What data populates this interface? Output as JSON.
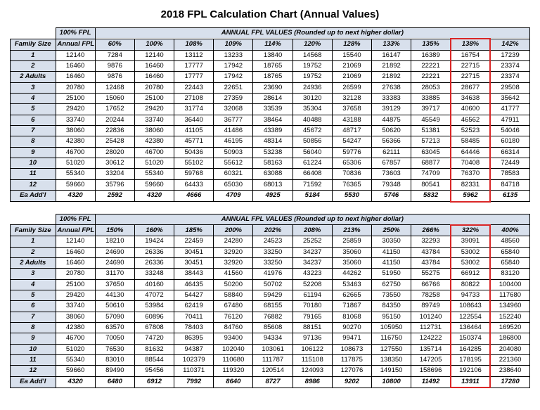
{
  "title": "2018 FPL Calculation Chart (Annual Values)",
  "labels": {
    "family_size": "Family Size",
    "fpl100": "100% FPL",
    "annual_fpl": "Annual FPL",
    "spanner": "ANNUAL FPL VALUES (Rounded up to next higher dollar)",
    "ea_addl": "Ea Add'l"
  },
  "colors": {
    "header_bg": "#d8e0ec",
    "highlight_border": "#d92626",
    "border": "#000000",
    "background": "#ffffff"
  },
  "typography": {
    "title_fontsize_pt": 11,
    "body_fontsize_pt": 7
  },
  "table1": {
    "highlight_cols": [
      9
    ],
    "pct_headers": [
      "60%",
      "100%",
      "108%",
      "109%",
      "114%",
      "120%",
      "128%",
      "133%",
      "135%",
      "138%",
      "142%"
    ],
    "rows": [
      {
        "fs": "1",
        "afpl": "12140",
        "v": [
          "7284",
          "12140",
          "13112",
          "13233",
          "13840",
          "14568",
          "15540",
          "16147",
          "16389",
          "16754",
          "17239"
        ]
      },
      {
        "fs": "2",
        "afpl": "16460",
        "v": [
          "9876",
          "16460",
          "17777",
          "17942",
          "18765",
          "19752",
          "21069",
          "21892",
          "22221",
          "22715",
          "23374"
        ]
      },
      {
        "fs": "2 Adults",
        "afpl": "16460",
        "v": [
          "9876",
          "16460",
          "17777",
          "17942",
          "18765",
          "19752",
          "21069",
          "21892",
          "22221",
          "22715",
          "23374"
        ]
      },
      {
        "fs": "3",
        "afpl": "20780",
        "v": [
          "12468",
          "20780",
          "22443",
          "22651",
          "23690",
          "24936",
          "26599",
          "27638",
          "28053",
          "28677",
          "29508"
        ]
      },
      {
        "fs": "4",
        "afpl": "25100",
        "v": [
          "15060",
          "25100",
          "27108",
          "27359",
          "28614",
          "30120",
          "32128",
          "33383",
          "33885",
          "34638",
          "35642"
        ]
      },
      {
        "fs": "5",
        "afpl": "29420",
        "v": [
          "17652",
          "29420",
          "31774",
          "32068",
          "33539",
          "35304",
          "37658",
          "39129",
          "39717",
          "40600",
          "41777"
        ]
      },
      {
        "fs": "6",
        "afpl": "33740",
        "v": [
          "20244",
          "33740",
          "36440",
          "36777",
          "38464",
          "40488",
          "43188",
          "44875",
          "45549",
          "46562",
          "47911"
        ]
      },
      {
        "fs": "7",
        "afpl": "38060",
        "v": [
          "22836",
          "38060",
          "41105",
          "41486",
          "43389",
          "45672",
          "48717",
          "50620",
          "51381",
          "52523",
          "54046"
        ]
      },
      {
        "fs": "8",
        "afpl": "42380",
        "v": [
          "25428",
          "42380",
          "45771",
          "46195",
          "48314",
          "50856",
          "54247",
          "56366",
          "57213",
          "58485",
          "60180"
        ]
      },
      {
        "fs": "9",
        "afpl": "46700",
        "v": [
          "28020",
          "46700",
          "50436",
          "50903",
          "53238",
          "56040",
          "59776",
          "62111",
          "63045",
          "64446",
          "66314"
        ]
      },
      {
        "fs": "10",
        "afpl": "51020",
        "v": [
          "30612",
          "51020",
          "55102",
          "55612",
          "58163",
          "61224",
          "65306",
          "67857",
          "68877",
          "70408",
          "72449"
        ]
      },
      {
        "fs": "11",
        "afpl": "55340",
        "v": [
          "33204",
          "55340",
          "59768",
          "60321",
          "63088",
          "66408",
          "70836",
          "73603",
          "74709",
          "76370",
          "78583"
        ]
      },
      {
        "fs": "12",
        "afpl": "59660",
        "v": [
          "35796",
          "59660",
          "64433",
          "65030",
          "68013",
          "71592",
          "76365",
          "79348",
          "80541",
          "82331",
          "84718"
        ]
      }
    ],
    "footer": {
      "fs": "Ea Add'l",
      "afpl": "4320",
      "v": [
        "2592",
        "4320",
        "4666",
        "4709",
        "4925",
        "5184",
        "5530",
        "5746",
        "5832",
        "5962",
        "6135"
      ]
    }
  },
  "table2": {
    "highlight_cols": [
      9
    ],
    "pct_headers": [
      "150%",
      "160%",
      "185%",
      "200%",
      "202%",
      "208%",
      "213%",
      "250%",
      "266%",
      "322%",
      "400%"
    ],
    "rows": [
      {
        "fs": "1",
        "afpl": "12140",
        "v": [
          "18210",
          "19424",
          "22459",
          "24280",
          "24523",
          "25252",
          "25859",
          "30350",
          "32293",
          "39091",
          "48560"
        ]
      },
      {
        "fs": "2",
        "afpl": "16460",
        "v": [
          "24690",
          "26336",
          "30451",
          "32920",
          "33250",
          "34237",
          "35060",
          "41150",
          "43784",
          "53002",
          "65840"
        ]
      },
      {
        "fs": "2 Adults",
        "afpl": "16460",
        "v": [
          "24690",
          "26336",
          "30451",
          "32920",
          "33250",
          "34237",
          "35060",
          "41150",
          "43784",
          "53002",
          "65840"
        ]
      },
      {
        "fs": "3",
        "afpl": "20780",
        "v": [
          "31170",
          "33248",
          "38443",
          "41560",
          "41976",
          "43223",
          "44262",
          "51950",
          "55275",
          "66912",
          "83120"
        ]
      },
      {
        "fs": "4",
        "afpl": "25100",
        "v": [
          "37650",
          "40160",
          "46435",
          "50200",
          "50702",
          "52208",
          "53463",
          "62750",
          "66766",
          "80822",
          "100400"
        ]
      },
      {
        "fs": "5",
        "afpl": "29420",
        "v": [
          "44130",
          "47072",
          "54427",
          "58840",
          "59429",
          "61194",
          "62665",
          "73550",
          "78258",
          "94733",
          "117680"
        ]
      },
      {
        "fs": "6",
        "afpl": "33740",
        "v": [
          "50610",
          "53984",
          "62419",
          "67480",
          "68155",
          "70180",
          "71867",
          "84350",
          "89749",
          "108643",
          "134960"
        ]
      },
      {
        "fs": "7",
        "afpl": "38060",
        "v": [
          "57090",
          "60896",
          "70411",
          "76120",
          "76882",
          "79165",
          "81068",
          "95150",
          "101240",
          "122554",
          "152240"
        ]
      },
      {
        "fs": "8",
        "afpl": "42380",
        "v": [
          "63570",
          "67808",
          "78403",
          "84760",
          "85608",
          "88151",
          "90270",
          "105950",
          "112731",
          "136464",
          "169520"
        ]
      },
      {
        "fs": "9",
        "afpl": "46700",
        "v": [
          "70050",
          "74720",
          "86395",
          "93400",
          "94334",
          "97136",
          "99471",
          "116750",
          "124222",
          "150374",
          "186800"
        ]
      },
      {
        "fs": "10",
        "afpl": "51020",
        "v": [
          "76530",
          "81632",
          "94387",
          "102040",
          "103061",
          "106122",
          "108673",
          "127550",
          "135714",
          "164285",
          "204080"
        ]
      },
      {
        "fs": "11",
        "afpl": "55340",
        "v": [
          "83010",
          "88544",
          "102379",
          "110680",
          "111787",
          "115108",
          "117875",
          "138350",
          "147205",
          "178195",
          "221360"
        ]
      },
      {
        "fs": "12",
        "afpl": "59660",
        "v": [
          "89490",
          "95456",
          "110371",
          "119320",
          "120514",
          "124093",
          "127076",
          "149150",
          "158696",
          "192106",
          "238640"
        ]
      }
    ],
    "footer": {
      "fs": "Ea Add'l",
      "afpl": "4320",
      "v": [
        "6480",
        "6912",
        "7992",
        "8640",
        "8727",
        "8986",
        "9202",
        "10800",
        "11492",
        "13911",
        "17280"
      ]
    }
  }
}
